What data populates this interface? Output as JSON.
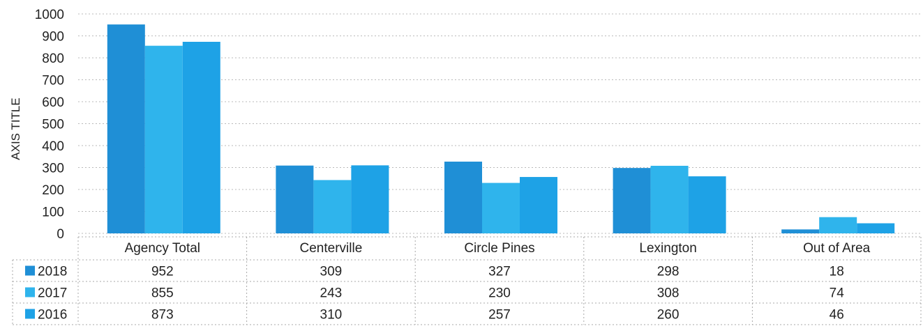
{
  "chart_data": {
    "type": "bar",
    "ylabel": "AXIS TITLE",
    "ylim": [
      0,
      1000
    ],
    "yticks": [
      "0",
      "100",
      "200",
      "300",
      "400",
      "500",
      "600",
      "700",
      "800",
      "900",
      "1000"
    ],
    "categories": [
      "Agency Total",
      "Centerville",
      "Circle Pines",
      "Lexington",
      "Out of Area"
    ],
    "series": [
      {
        "name": "2018",
        "color": "#1f8fd6",
        "values": [
          952,
          309,
          327,
          298,
          18
        ]
      },
      {
        "name": "2017",
        "color": "#2fb4ec",
        "values": [
          855,
          243,
          230,
          308,
          74
        ]
      },
      {
        "name": "2016",
        "color": "#1ea2e6",
        "values": [
          873,
          310,
          257,
          260,
          46
        ]
      }
    ],
    "grid": true,
    "legend": "data-table"
  }
}
